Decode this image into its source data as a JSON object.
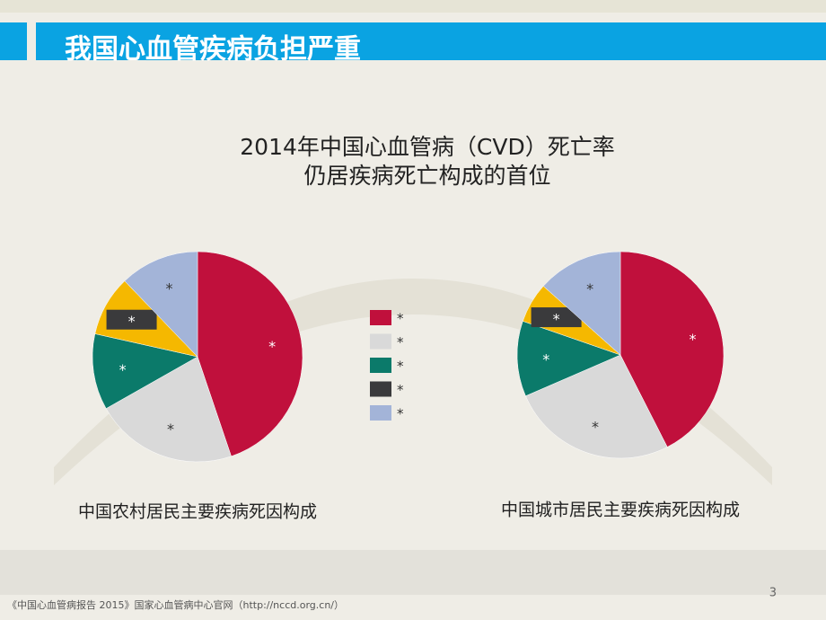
{
  "header": {
    "title": "我国心血管疾病负担严重"
  },
  "title_lines": [
    "2014年中国心血管病（CVD）死亡率",
    "仍居疾病死亡构成的首位"
  ],
  "legend": {
    "labels": [
      "*",
      "*",
      "*",
      "*",
      "*"
    ],
    "colors": [
      "#c0103c",
      "#d9d9d9",
      "#0b7a6a",
      "#3a3a3c",
      "#a3b4d8"
    ]
  },
  "chart_data": [
    {
      "type": "pie",
      "title": "中国农村居民主要疾病死因构成",
      "categories": [
        "*",
        "*",
        "*",
        "*",
        "*"
      ],
      "values": [
        44.8,
        22,
        11.7,
        9.3,
        12.2
      ],
      "colors": [
        "#c0103c",
        "#d9d9d9",
        "#0b7a6a",
        "#f5b800",
        "#a3b4d8"
      ]
    },
    {
      "type": "pie",
      "title": "中国城市居民主要疾病死因构成",
      "categories": [
        "*",
        "*",
        "*",
        "*",
        "*"
      ],
      "values": [
        42.5,
        26,
        11.8,
        6.3,
        13.4
      ],
      "colors": [
        "#c0103c",
        "#d9d9d9",
        "#0b7a6a",
        "#f5b800",
        "#a3b4d8"
      ]
    }
  ],
  "footer": {
    "source": "《中国心血管病报告 2015》国家心血管病中心官网（http://nccd.org.cn/）",
    "page": "3"
  }
}
